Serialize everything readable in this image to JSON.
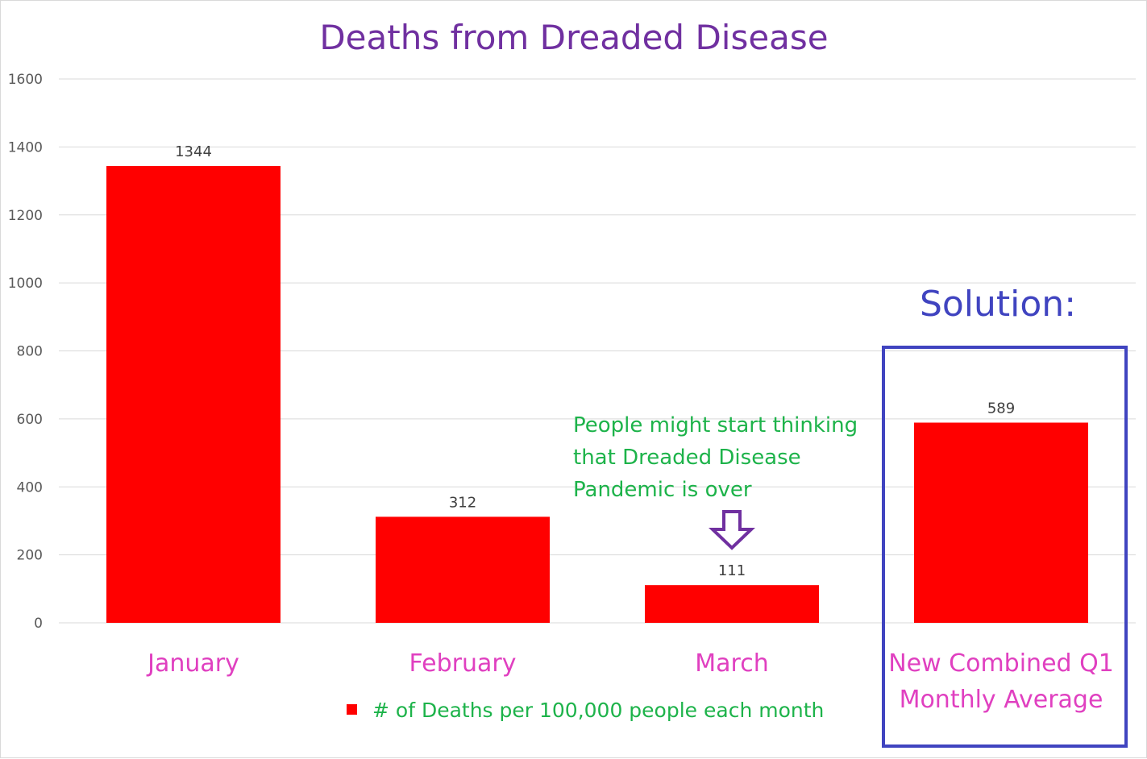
{
  "chart_data": {
    "type": "bar",
    "title": "Deaths from Dreaded Disease",
    "categories": [
      "January",
      "February",
      "March",
      "New Combined Q1 Monthly Average"
    ],
    "category_lines": [
      [
        "January"
      ],
      [
        "February"
      ],
      [
        "March"
      ],
      [
        "New Combined Q1",
        "Monthly Average"
      ]
    ],
    "values": [
      1344,
      312,
      111,
      589
    ],
    "series": [
      {
        "name": "# of Deaths per 100,000 people each month",
        "values": [
          1344,
          312,
          111,
          589
        ]
      }
    ],
    "legend": "# of Deaths per 100,000 people each month",
    "legend_position": "bottom",
    "ylim": [
      0,
      1600
    ],
    "yticks": [
      0,
      200,
      400,
      600,
      800,
      1000,
      1200,
      1400,
      1600
    ],
    "grid": true,
    "xlabel": "",
    "ylabel": "",
    "annotation": {
      "lines": [
        "People might start thinking",
        "that Dreaded Disease",
        "Pandemic is over"
      ],
      "points_to": "March"
    },
    "highlight": {
      "label": "Solution:",
      "category": "New Combined Q1 Monthly Average"
    }
  },
  "colors": {
    "bar": "#ff0000",
    "title": "#7030a0",
    "category_label": "#e040c0",
    "legend_text": "#1db34a",
    "annotation_text": "#1db34a",
    "arrow": "#7030a0",
    "highlight_box": "#4044c0",
    "solution_text": "#4044c0",
    "gridline": "#d9d9d9"
  }
}
